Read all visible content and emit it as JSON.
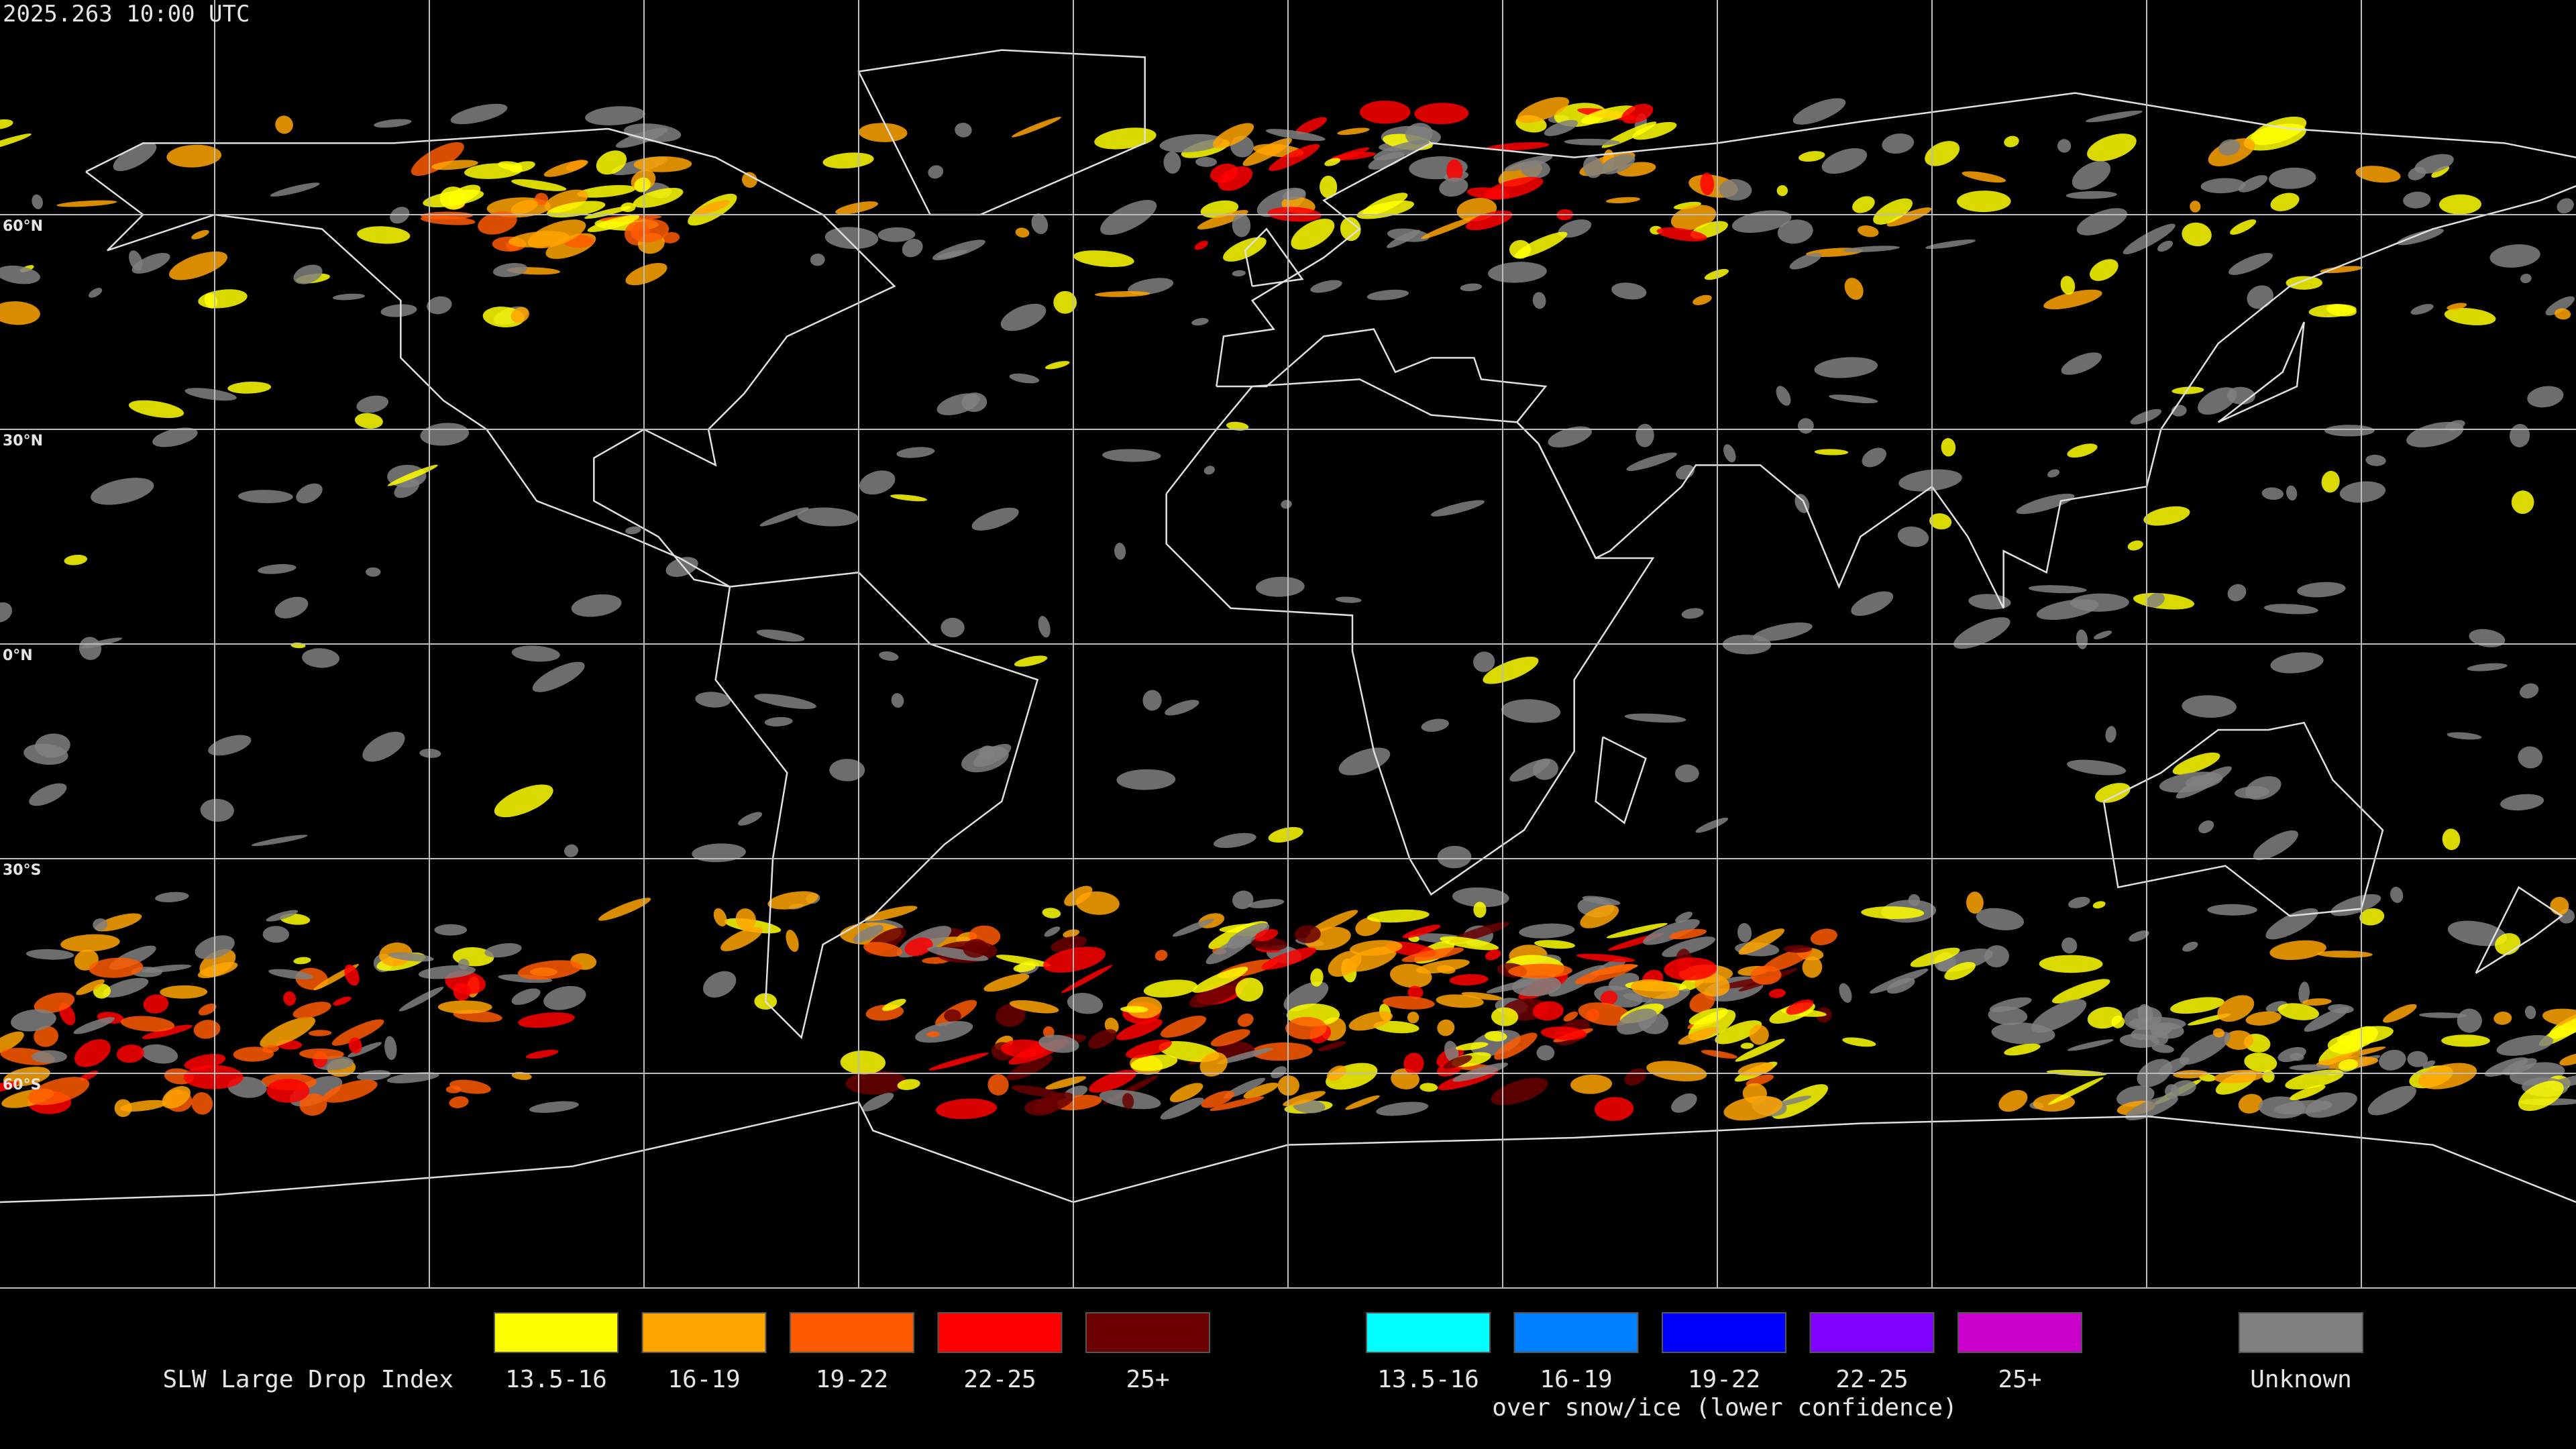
{
  "timestamp": "2025.263 10:00 UTC",
  "lat_labels": [
    "60°N",
    "30°N",
    "0°N",
    "30°S",
    "60°S"
  ],
  "legend": {
    "title": "SLW Large Drop Index",
    "groups": [
      {
        "items": [
          {
            "label": "13.5-16",
            "color": "#ffff00"
          },
          {
            "label": "16-19",
            "color": "#ffa500"
          },
          {
            "label": "19-22",
            "color": "#ff5a00"
          },
          {
            "label": "22-25",
            "color": "#ff0000"
          },
          {
            "label": "25+",
            "color": "#6b0000"
          }
        ]
      },
      {
        "items": [
          {
            "label": "13.5-16",
            "color": "#00ffff"
          },
          {
            "label": "16-19",
            "color": "#0080ff"
          },
          {
            "label": "19-22",
            "color": "#0000ff"
          },
          {
            "label": "22-25",
            "color": "#7f00ff"
          },
          {
            "label": "25+",
            "color": "#cc00cc"
          }
        ],
        "note": "over snow/ice (lower confidence)"
      }
    ],
    "unknown": {
      "label": "Unknown",
      "color": "#808080"
    }
  }
}
